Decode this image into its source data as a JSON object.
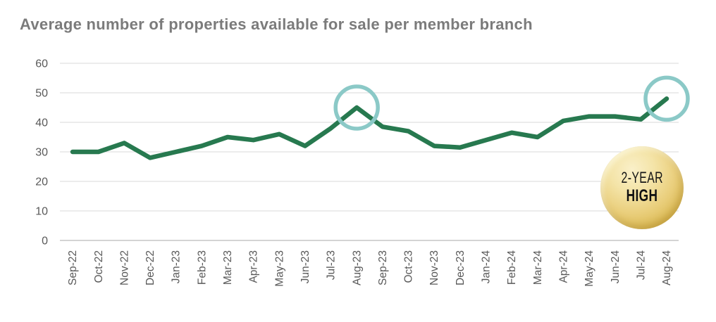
{
  "title": "Average number of properties available for sale per member branch",
  "badge": {
    "line1": "2-YEAR",
    "line2": "HIGH"
  },
  "colors": {
    "title_text": "#7b7b7b",
    "axis_label": "#595959",
    "gridline": "#d9d9d9",
    "baseline": "#c6c6c6",
    "line": "#27794f",
    "highlight_circle": "#8bc9c7",
    "badge_gold_light": "#faf0c9",
    "badge_gold_dark": "#cda63c",
    "badge_text": "#161616"
  },
  "chart_data": {
    "type": "line",
    "title": "Average number of properties available for sale per member branch",
    "xlabel": "",
    "ylabel": "",
    "categories": [
      "Sep-22",
      "Oct-22",
      "Nov-22",
      "Dec-22",
      "Jan-23",
      "Feb-23",
      "Mar-23",
      "Apr-23",
      "May-23",
      "Jun-23",
      "Jul-23",
      "Aug-23",
      "Sep-23",
      "Oct-23",
      "Nov-23",
      "Dec-23",
      "Jan-24",
      "Feb-24",
      "Mar-24",
      "Apr-24",
      "May-24",
      "Jun-24",
      "Jul-24",
      "Aug-24"
    ],
    "values": [
      30,
      30,
      33,
      28,
      30,
      32,
      35,
      34,
      36,
      32,
      38,
      45,
      38.5,
      37,
      32,
      31.5,
      34,
      36.5,
      35,
      40.5,
      42,
      42,
      41,
      48
    ],
    "ylim": [
      0,
      60
    ],
    "ytick_step": 10,
    "grid": "horizontal",
    "legend": "none",
    "highlighted_points": [
      "Aug-23",
      "Aug-24"
    ],
    "annotations": [
      "2-YEAR HIGH"
    ]
  }
}
